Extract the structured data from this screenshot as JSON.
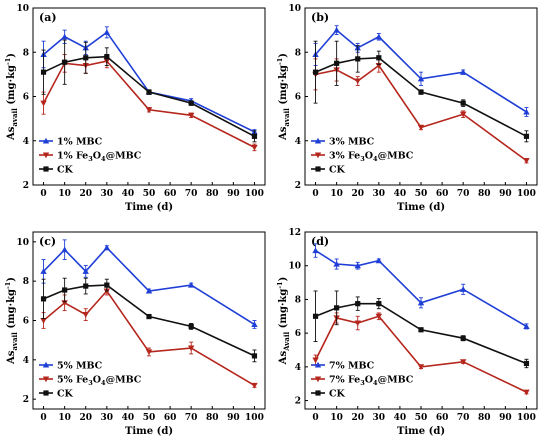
{
  "colors": {
    "MBC": "#1f3fd6",
    "Fe3O4": "#b5261d",
    "CK": "#111111"
  },
  "chart_data": [
    {
      "type": "line",
      "panel_label": "(a)",
      "xlabel": "Time (d)",
      "ylabel_main": "As",
      "ylabel_sub": "avail",
      "ylabel_unit": " (mg·kg",
      "ylabel_exp": "-1",
      "ylabel_close": ")",
      "x": [
        0,
        10,
        20,
        30,
        50,
        70,
        100
      ],
      "xlim": [
        -5,
        105
      ],
      "ylim": [
        2,
        10
      ],
      "xticks": [
        "0",
        "10",
        "20",
        "30",
        "40",
        "50",
        "60",
        "70",
        "80",
        "90",
        "100"
      ],
      "yticks": [
        "2",
        "4",
        "6",
        "8",
        "10"
      ],
      "legend": "bottom-left",
      "series": [
        {
          "key": "MBC",
          "name_pre": "1% MBC",
          "name_sub": "",
          "name_post": "",
          "marker": "tri-up",
          "values": [
            7.9,
            8.7,
            8.2,
            8.9,
            6.2,
            5.8,
            4.4
          ],
          "errors": [
            0.6,
            0.3,
            0.3,
            0.25,
            0.1,
            0.1,
            0.1
          ]
        },
        {
          "key": "Fe3O4",
          "name_pre": "1% Fe",
          "name_sub": "3",
          "name_post": "O",
          "name_sub2": "4",
          "name_tail": "@MBC",
          "marker": "tri-down",
          "values": [
            5.7,
            7.5,
            7.4,
            7.6,
            5.4,
            5.15,
            3.7
          ],
          "errors": [
            0.5,
            0.4,
            0.35,
            0.3,
            0.1,
            0.1,
            0.15
          ]
        },
        {
          "key": "CK",
          "name_pre": "CK",
          "name_sub": "",
          "name_post": "",
          "marker": "square",
          "values": [
            7.1,
            7.55,
            7.75,
            7.8,
            6.2,
            5.7,
            4.2
          ],
          "errors": [
            1.0,
            1.0,
            0.7,
            0.4,
            0.1,
            0.1,
            0.25
          ]
        }
      ]
    },
    {
      "type": "line",
      "panel_label": "(b)",
      "xlabel": "Time (d)",
      "ylabel_main": "As",
      "ylabel_sub": "avail",
      "ylabel_unit": " (mg·kg",
      "ylabel_exp": "-1",
      "ylabel_close": ")",
      "x": [
        0,
        10,
        20,
        30,
        50,
        70,
        100
      ],
      "xlim": [
        -5,
        105
      ],
      "ylim": [
        2,
        10
      ],
      "xticks": [
        "0",
        "10",
        "20",
        "30",
        "40",
        "50",
        "60",
        "70",
        "80",
        "90",
        "100"
      ],
      "yticks": [
        "2",
        "4",
        "6",
        "8",
        "10"
      ],
      "legend": "bottom-left",
      "series": [
        {
          "key": "MBC",
          "name_pre": "3% MBC",
          "name_sub": "",
          "name_post": "",
          "marker": "tri-up",
          "values": [
            7.9,
            9.0,
            8.2,
            8.7,
            6.8,
            7.1,
            5.3
          ],
          "errors": [
            0.5,
            0.2,
            0.2,
            0.15,
            0.3,
            0.1,
            0.2
          ]
        },
        {
          "key": "Fe3O4",
          "name_pre": "3% Fe",
          "name_sub": "3",
          "name_post": "O",
          "name_sub2": "4",
          "name_tail": "@MBC",
          "marker": "tri-down",
          "values": [
            7.0,
            7.2,
            6.7,
            7.4,
            4.6,
            5.2,
            3.1
          ],
          "errors": [
            0.7,
            0.5,
            0.2,
            0.3,
            0.1,
            0.15,
            0.1
          ]
        },
        {
          "key": "CK",
          "name_pre": "CK",
          "name_sub": "",
          "name_post": "",
          "marker": "square",
          "values": [
            7.1,
            7.5,
            7.7,
            7.75,
            6.2,
            5.7,
            4.2
          ],
          "errors": [
            1.4,
            1.0,
            0.6,
            0.3,
            0.1,
            0.15,
            0.25
          ]
        }
      ]
    },
    {
      "type": "line",
      "panel_label": "(c)",
      "xlabel": "Time (d)",
      "ylabel_main": "As",
      "ylabel_sub": "avail",
      "ylabel_unit": " (mg·kg",
      "ylabel_exp": "-1",
      "ylabel_close": ")",
      "x": [
        0,
        10,
        20,
        30,
        50,
        70,
        100
      ],
      "xlim": [
        -5,
        105
      ],
      "ylim": [
        1.5,
        10.5
      ],
      "xticks": [
        "0",
        "10",
        "20",
        "30",
        "40",
        "50",
        "60",
        "70",
        "80",
        "90",
        "100"
      ],
      "yticks": [
        "2",
        "4",
        "6",
        "8",
        "10"
      ],
      "legend": "bottom-left",
      "series": [
        {
          "key": "MBC",
          "name_pre": "5% MBC",
          "name_sub": "",
          "name_post": "",
          "marker": "tri-up",
          "values": [
            8.5,
            9.6,
            8.5,
            9.7,
            7.5,
            7.8,
            5.8
          ],
          "errors": [
            0.6,
            0.5,
            0.3,
            0.1,
            0.1,
            0.1,
            0.2
          ]
        },
        {
          "key": "Fe3O4",
          "name_pre": "5% Fe",
          "name_sub": "3",
          "name_post": "O",
          "name_sub2": "4",
          "name_tail": "@MBC",
          "marker": "tri-down",
          "values": [
            6.0,
            6.9,
            6.3,
            7.5,
            4.4,
            4.6,
            2.7
          ],
          "errors": [
            0.4,
            0.4,
            0.3,
            0.2,
            0.2,
            0.3,
            0.1
          ]
        },
        {
          "key": "CK",
          "name_pre": "CK",
          "name_sub": "",
          "name_post": "",
          "marker": "square",
          "values": [
            7.1,
            7.55,
            7.75,
            7.8,
            6.2,
            5.7,
            4.2
          ],
          "errors": [
            1.0,
            0.6,
            0.4,
            0.3,
            0.1,
            0.15,
            0.3
          ]
        }
      ]
    },
    {
      "type": "line",
      "panel_label": "(d)",
      "xlabel": "Time (d)",
      "ylabel_main": "As",
      "ylabel_sub": "Avail",
      "ylabel_unit": " (mg·kg",
      "ylabel_exp": "-1",
      "ylabel_close": ")",
      "x": [
        0,
        10,
        20,
        30,
        50,
        70,
        100
      ],
      "xlim": [
        -5,
        105
      ],
      "ylim": [
        1.5,
        12
      ],
      "xticks": [
        "0",
        "10",
        "20",
        "30",
        "40",
        "50",
        "60",
        "70",
        "80",
        "90",
        "100"
      ],
      "yticks": [
        "2",
        "4",
        "6",
        "8",
        "10",
        "12"
      ],
      "legend": "bottom-left",
      "series": [
        {
          "key": "MBC",
          "name_pre": "7% MBC",
          "name_sub": "",
          "name_post": "",
          "marker": "tri-up",
          "values": [
            10.9,
            10.1,
            10.0,
            10.3,
            7.8,
            8.6,
            6.4
          ],
          "errors": [
            0.4,
            0.3,
            0.2,
            0.1,
            0.3,
            0.3,
            0.15
          ]
        },
        {
          "key": "Fe3O4",
          "name_pre": "7% Fe",
          "name_sub": "3",
          "name_post": "O",
          "name_sub2": "4",
          "name_tail": "@MBC",
          "marker": "tri-down",
          "values": [
            4.4,
            6.9,
            6.6,
            7.0,
            4.0,
            4.3,
            2.5
          ],
          "errors": [
            0.3,
            0.3,
            0.4,
            0.2,
            0.1,
            0.1,
            0.1
          ]
        },
        {
          "key": "CK",
          "name_pre": "CK",
          "name_sub": "",
          "name_post": "",
          "marker": "square",
          "values": [
            7.0,
            7.5,
            7.75,
            7.75,
            6.2,
            5.7,
            4.2
          ],
          "errors": [
            1.5,
            1.0,
            0.4,
            0.3,
            0.1,
            0.15,
            0.25
          ]
        }
      ]
    }
  ]
}
